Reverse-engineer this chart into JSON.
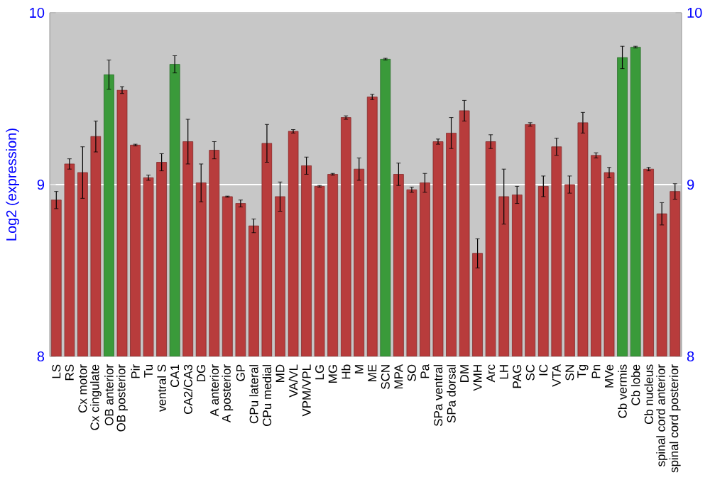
{
  "chart_data": {
    "type": "bar",
    "ylabel": "Log2 (expression)",
    "categories": [
      "LS",
      "RS",
      "Cx motor",
      "Cx cingulate",
      "OB anterior",
      "OB posterior",
      "Pir",
      "Tu",
      "ventral S",
      "CA1",
      "CA2/CA3",
      "DG",
      "A anterior",
      "A posterior",
      "GP",
      "CPu lateral",
      "CPu medial",
      "MD",
      "VA/VL",
      "VPM/VPL",
      "LG",
      "MG",
      "Hb",
      "M",
      "ME",
      "SCN",
      "MPA",
      "SO",
      "Pa",
      "SPa ventral",
      "SPa dorsal",
      "DM",
      "VMH",
      "Arc",
      "LH",
      "PAG",
      "SC",
      "IC",
      "VTA",
      "SN",
      "Tg",
      "Pn",
      "MVe",
      "Cb vermis",
      "Cb lobe",
      "Cb nucleus",
      "spinal cord anterior",
      "spinal cord posterior"
    ],
    "values": [
      8.91,
      9.12,
      9.07,
      9.28,
      9.64,
      9.55,
      9.23,
      9.04,
      9.13,
      9.7,
      9.25,
      9.01,
      9.2,
      8.93,
      8.89,
      8.76,
      9.24,
      8.93,
      9.31,
      9.11,
      8.99,
      9.06,
      9.39,
      9.09,
      9.51,
      9.73,
      9.06,
      8.97,
      9.01,
      9.25,
      9.3,
      9.43,
      8.6,
      9.25,
      8.93,
      8.94,
      9.35,
      8.99,
      9.22,
      9.0,
      9.36,
      9.17,
      9.07,
      9.74,
      9.8,
      9.09,
      8.83,
      8.96
    ],
    "errors": [
      0.05,
      0.03,
      0.15,
      0.09,
      0.085,
      0.02,
      0.005,
      0.015,
      0.05,
      0.05,
      0.13,
      0.11,
      0.05,
      0.003,
      0.02,
      0.04,
      0.11,
      0.085,
      0.01,
      0.05,
      0.005,
      0.005,
      0.01,
      0.065,
      0.015,
      0.005,
      0.065,
      0.015,
      0.055,
      0.015,
      0.09,
      0.06,
      0.085,
      0.04,
      0.16,
      0.05,
      0.01,
      0.06,
      0.05,
      0.05,
      0.06,
      0.015,
      0.03,
      0.065,
      0.005,
      0.01,
      0.065,
      0.045
    ],
    "colors": [
      "#b83c3c",
      "#b83c3c",
      "#b83c3c",
      "#b83c3c",
      "#3a9a3a",
      "#b83c3c",
      "#b83c3c",
      "#b83c3c",
      "#b83c3c",
      "#3a9a3a",
      "#b83c3c",
      "#b83c3c",
      "#b83c3c",
      "#b83c3c",
      "#b83c3c",
      "#b83c3c",
      "#b83c3c",
      "#b83c3c",
      "#b83c3c",
      "#b83c3c",
      "#b83c3c",
      "#b83c3c",
      "#b83c3c",
      "#b83c3c",
      "#b83c3c",
      "#3a9a3a",
      "#b83c3c",
      "#b83c3c",
      "#b83c3c",
      "#b83c3c",
      "#b83c3c",
      "#b83c3c",
      "#b83c3c",
      "#b83c3c",
      "#b83c3c",
      "#b83c3c",
      "#b83c3c",
      "#b83c3c",
      "#b83c3c",
      "#b83c3c",
      "#b83c3c",
      "#b83c3c",
      "#b83c3c",
      "#3a9a3a",
      "#3a9a3a",
      "#b83c3c",
      "#b83c3c",
      "#b83c3c"
    ],
    "ylim": [
      8,
      10
    ],
    "yticks": [
      8,
      9,
      10
    ],
    "y2lim": [
      8,
      10
    ],
    "y2ticks": [
      8,
      9,
      10
    ],
    "grid": "y"
  }
}
